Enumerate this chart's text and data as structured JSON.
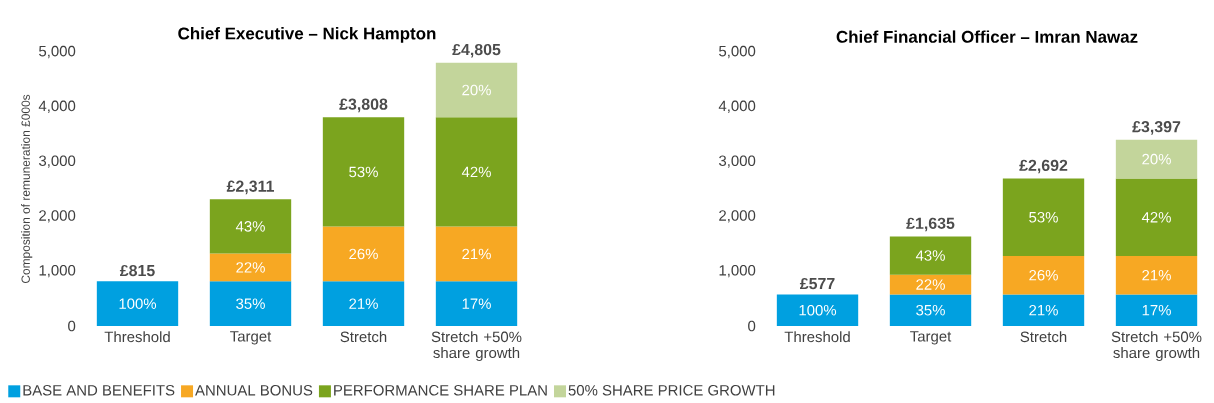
{
  "chart_data": [
    {
      "type": "bar",
      "stacked": true,
      "title": "Chief Executive – Nick Hampton",
      "ylabel": "Composition of remuneration £000s",
      "categories": [
        "Threshold",
        "Target",
        "Stretch",
        "Stretch +50% share growth"
      ],
      "ylim": [
        0,
        5000
      ],
      "yticks": [
        {
          "value": 0,
          "label": "0"
        },
        {
          "value": 1000,
          "label": "1,000"
        },
        {
          "value": 2000,
          "label": "2,000"
        },
        {
          "value": 3000,
          "label": "3,000"
        },
        {
          "value": 4000,
          "label": "4,000"
        },
        {
          "value": 5000,
          "label": "5,000"
        }
      ],
      "legend": "bottom",
      "totals": [
        "£815",
        "£2,311",
        "£3,808",
        "£4,805"
      ],
      "series": [
        {
          "name": "BASE AND BENEFITS",
          "color": "#00a0e0",
          "values": [
            815,
            815,
            815,
            815
          ]
        },
        {
          "name": "ANNUAL BONUS",
          "color": "#f7a823",
          "values": [
            null,
            509,
            1000,
            1000
          ]
        },
        {
          "name": "PERFORMANCE SHARE PLAN",
          "color": "#7ba41e",
          "values": [
            null,
            987,
            1993,
            1993
          ]
        },
        {
          "name": "50% SHARE PRICE GROWTH",
          "color": "#c3d59b",
          "values": [
            null,
            null,
            null,
            997
          ]
        }
      ],
      "annotations": [
        "100%",
        "35%",
        "22%",
        "43%",
        "21%",
        "26%",
        "53%",
        "17%",
        "21%",
        "42%",
        "20%"
      ]
    },
    {
      "type": "bar",
      "stacked": true,
      "title": "Chief Financial Officer – Imran Nawaz",
      "categories": [
        "Threshold",
        "Target",
        "Stretch",
        "Stretch +50% share growth"
      ],
      "ylim": [
        0,
        5000
      ],
      "yticks": [
        {
          "value": 0,
          "label": "0"
        },
        {
          "value": 1000,
          "label": "1,000"
        },
        {
          "value": 2000,
          "label": "2,000"
        },
        {
          "value": 3000,
          "label": "3,000"
        },
        {
          "value": 4000,
          "label": "4,000"
        },
        {
          "value": 5000,
          "label": "5,000"
        }
      ],
      "totals": [
        "£577",
        "£1,635",
        "£2,692",
        "£3,397"
      ],
      "series": [
        {
          "color": "#00a0e0",
          "values": [
            577,
            577,
            577,
            577
          ]
        },
        {
          "color": "#f7a823",
          "values": [
            null,
            360,
            700,
            700
          ]
        },
        {
          "color": "#7ba41e",
          "values": [
            null,
            698,
            1415,
            1415
          ]
        },
        {
          "color": "#c3d59b",
          "values": [
            null,
            null,
            null,
            705
          ]
        }
      ],
      "annotations": [
        "100%",
        "35%",
        "22%",
        "43%",
        "21%",
        "26%",
        "53%",
        "17%",
        "21%",
        "42%",
        "20%"
      ]
    }
  ]
}
